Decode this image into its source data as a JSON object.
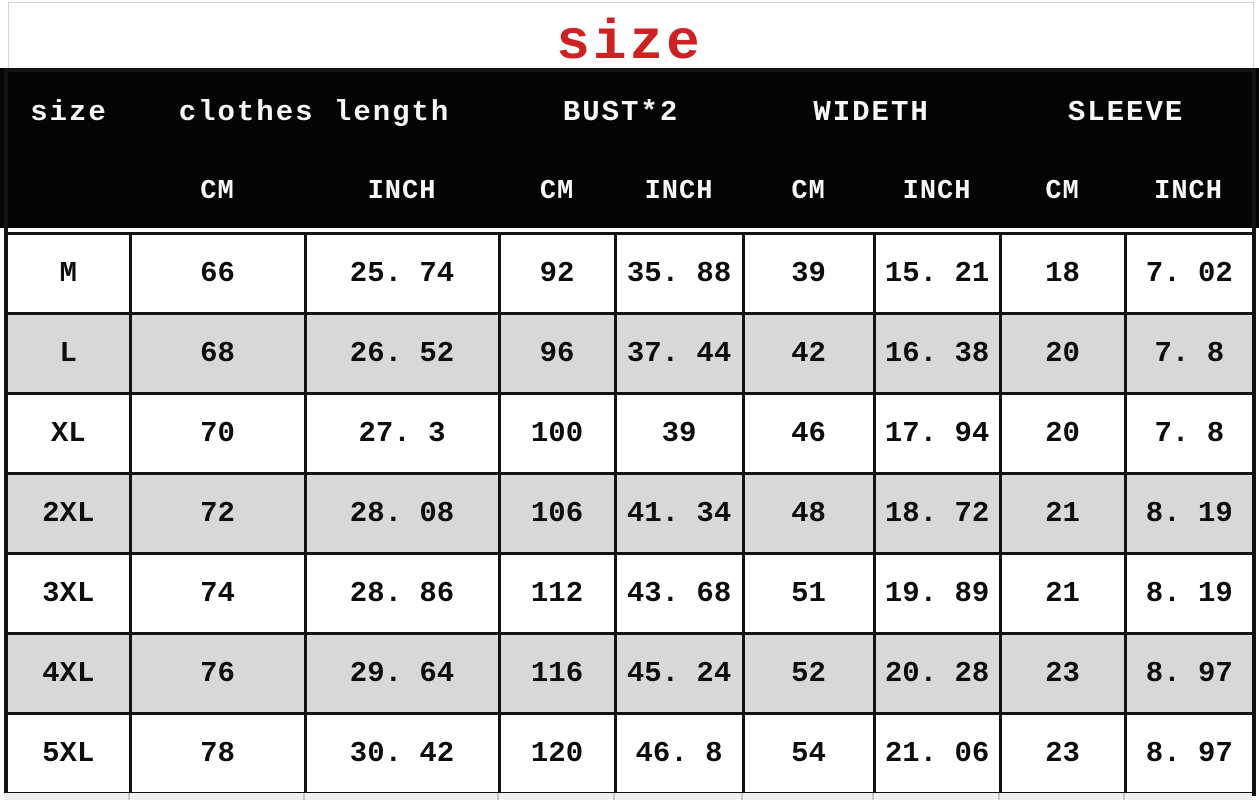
{
  "page_title": "size",
  "colors": {
    "accent_red": "#cc2222",
    "header_bg": "#040404",
    "header_text": "#f7f7f7",
    "row_alt_bg": "#d8d8d8",
    "border": "#121212"
  },
  "table": {
    "corner_header": "size",
    "groups": [
      {
        "label": "clothes length"
      },
      {
        "label": "BUST*2"
      },
      {
        "label": "WIDETH"
      },
      {
        "label": "SLEEVE"
      }
    ],
    "units": {
      "cm": "CM",
      "inch": "INCH"
    },
    "rows": [
      {
        "size": "M",
        "values": [
          "66",
          "25. 74",
          "92",
          "35. 88",
          "39",
          "15. 21",
          "18",
          "7. 02"
        ]
      },
      {
        "size": "L",
        "values": [
          "68",
          "26. 52",
          "96",
          "37. 44",
          "42",
          "16. 38",
          "20",
          "7. 8"
        ]
      },
      {
        "size": "XL",
        "values": [
          "70",
          "27. 3",
          "100",
          "39",
          "46",
          "17. 94",
          "20",
          "7. 8"
        ]
      },
      {
        "size": "2XL",
        "values": [
          "72",
          "28. 08",
          "106",
          "41. 34",
          "48",
          "18. 72",
          "21",
          "8. 19"
        ]
      },
      {
        "size": "3XL",
        "values": [
          "74",
          "28. 86",
          "112",
          "43. 68",
          "51",
          "19. 89",
          "21",
          "8. 19"
        ]
      },
      {
        "size": "4XL",
        "values": [
          "76",
          "29. 64",
          "116",
          "45. 24",
          "52",
          "20. 28",
          "23",
          "8. 97"
        ]
      },
      {
        "size": "5XL",
        "values": [
          "78",
          "30. 42",
          "120",
          "46. 8",
          "54",
          "21. 06",
          "23",
          "8. 97"
        ]
      }
    ]
  },
  "chart_data": {
    "type": "table",
    "title": "size",
    "columns": [
      "size",
      "clothes length CM",
      "clothes length INCH",
      "BUST*2 CM",
      "BUST*2 INCH",
      "WIDETH CM",
      "WIDETH INCH",
      "SLEEVE CM",
      "SLEEVE INCH"
    ],
    "rows": [
      [
        "M",
        66,
        25.74,
        92,
        35.88,
        39,
        15.21,
        18,
        7.02
      ],
      [
        "L",
        68,
        26.52,
        96,
        37.44,
        42,
        16.38,
        20,
        7.8
      ],
      [
        "XL",
        70,
        27.3,
        100,
        39,
        46,
        17.94,
        20,
        7.8
      ],
      [
        "2XL",
        72,
        28.08,
        106,
        41.34,
        48,
        18.72,
        21,
        8.19
      ],
      [
        "3XL",
        74,
        28.86,
        112,
        43.68,
        51,
        19.89,
        21,
        8.19
      ],
      [
        "4XL",
        76,
        29.64,
        116,
        45.24,
        52,
        20.28,
        23,
        8.97
      ],
      [
        "5XL",
        78,
        30.42,
        120,
        46.8,
        54,
        21.06,
        23,
        8.97
      ]
    ]
  }
}
